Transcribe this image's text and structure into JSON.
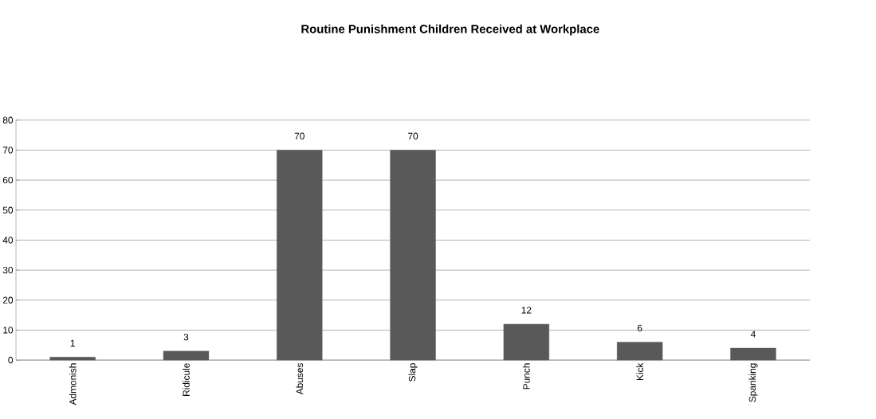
{
  "chart_data": {
    "type": "bar",
    "title": "Routine Punishment Children Received at Workplace",
    "categories": [
      "Admonish",
      "Ridicule",
      "Abuses",
      "Slap",
      "Punch",
      "Kick",
      "Spanking"
    ],
    "values": [
      1,
      3,
      70,
      70,
      12,
      6,
      4
    ],
    "color": "#595959",
    "ylim": [
      0,
      80
    ],
    "yticks": [
      0,
      10,
      20,
      30,
      40,
      50,
      60,
      70,
      80
    ],
    "grid": "y",
    "data_labels": true
  }
}
